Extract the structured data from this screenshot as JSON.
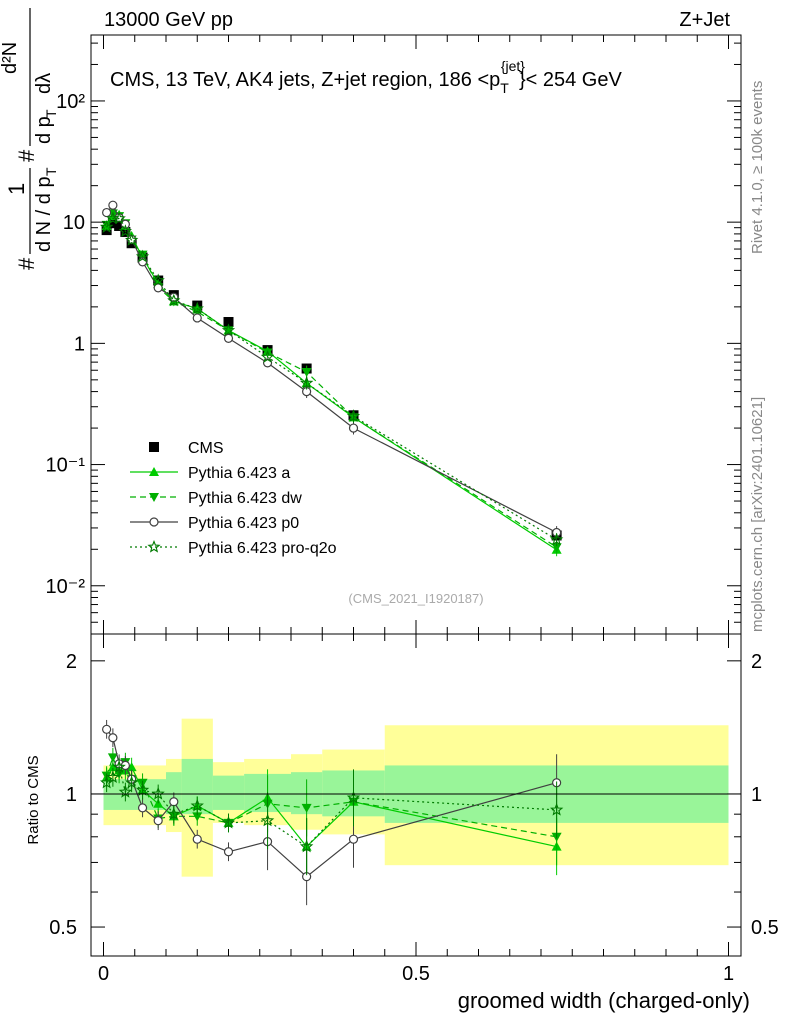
{
  "header": {
    "left": "13000 GeV pp",
    "right": "Z+Jet"
  },
  "side_labels": {
    "rivet": "Rivet 4.1.0, ≥ 100k events",
    "mcplots": "mcplots.cern.ch [arXiv:2401.10621]"
  },
  "colors": {
    "cms": "#000000",
    "a": "#00cc00",
    "dw": "#00b000",
    "p0": "#404040",
    "pro_q2o": "#007a00",
    "band_inner": "#99f599",
    "band_outer": "#ffff99"
  },
  "chart_data": [
    {
      "type": "scatter",
      "panel": "main",
      "title": "CMS, 13 TeV, AK4 jets, Z+jet region, 186 <p_T^{jet}< 254 GeV",
      "title_parts": {
        "main": "CMS, 13 TeV, AK4 jets, Z+jet region, 186 <p",
        "sub": "T",
        "sup": "{jet}",
        "rest": "}< 254 GeV"
      },
      "ylabel": "1/(dN/dp_T) d²N/(dp_T dλ)",
      "ylabel_parts": {
        "numer": "d²N",
        "denom_left": "d N / d p",
        "denom_mid": "d p",
        "denom_right": "dλ",
        "sub": "T",
        "hash": "#",
        "one": "1"
      },
      "yscale": "log",
      "ylim": [
        0.004,
        350
      ],
      "xlim": [
        -0.02,
        1.02
      ],
      "yticks": [
        "10⁻²",
        "10⁻¹",
        "1",
        "10",
        "10²"
      ],
      "ytick_values": [
        0.01,
        0.1,
        1,
        10,
        100
      ],
      "legend_position": "middle-left",
      "watermark": "(CMS_2021_I1920187)",
      "x": [
        0.005,
        0.015,
        0.025,
        0.035,
        0.045,
        0.0625,
        0.0875,
        0.1125,
        0.15,
        0.2,
        0.2625,
        0.325,
        0.4,
        0.725
      ],
      "series": [
        {
          "name": "CMS",
          "marker": "square",
          "line": "none",
          "values": [
            8.6,
            9.8,
            9.3,
            8.3,
            6.7,
            5.1,
            3.3,
            2.5,
            2.05,
            1.5,
            0.88,
            0.62,
            0.255,
            0.026
          ]
        },
        {
          "name": "Pythia 6.423 a",
          "marker": "triangle-up",
          "line": "solid",
          "values": [
            9.3,
            11.2,
            11.5,
            9.3,
            7.7,
            5.1,
            3.1,
            2.22,
            1.93,
            1.28,
            0.86,
            0.47,
            0.245,
            0.0198
          ]
        },
        {
          "name": "Pythia 6.423 dw",
          "marker": "triangle-down",
          "line": "dashed",
          "values": [
            9.5,
            11.8,
            11.2,
            9.8,
            7.2,
            5.4,
            2.9,
            2.22,
            1.82,
            1.28,
            0.84,
            0.58,
            0.245,
            0.0208
          ]
        },
        {
          "name": "Pythia 6.423 p0",
          "marker": "open-circle",
          "line": "solid",
          "values": [
            12.0,
            13.8,
            10.9,
            9.6,
            7.2,
            4.7,
            2.87,
            2.4,
            1.62,
            1.1,
            0.69,
            0.4,
            0.2,
            0.0275
          ]
        },
        {
          "name": "Pythia 6.423 pro-q2o",
          "marker": "star",
          "line": "dotted",
          "values": [
            9.1,
            10.7,
            10.7,
            8.4,
            7.1,
            5.2,
            3.3,
            2.25,
            1.93,
            1.28,
            0.77,
            0.47,
            0.25,
            0.024
          ]
        }
      ],
      "legend": [
        "CMS",
        "Pythia 6.423 a",
        "Pythia 6.423 dw",
        "Pythia 6.423 p0",
        "Pythia 6.423 pro-q2o"
      ]
    },
    {
      "type": "scatter",
      "panel": "ratio",
      "ylabel": "Ratio to CMS",
      "xlabel": "groomed width (charged-only)",
      "yscale": "log",
      "ylim": [
        0.43,
        2.3
      ],
      "xlim": [
        -0.02,
        1.02
      ],
      "yticks": [
        "0.5",
        "1",
        "2"
      ],
      "ytick_values": [
        0.5,
        1,
        2
      ],
      "xticks": [
        "0",
        "0.5",
        "1"
      ],
      "xtick_values": [
        0,
        0.5,
        1
      ],
      "bands": [
        {
          "x0": 0.0,
          "x1": 0.1,
          "inner": [
            0.92,
            1.08
          ],
          "outer": [
            0.85,
            1.16
          ]
        },
        {
          "x0": 0.1,
          "x1": 0.125,
          "inner": [
            0.9,
            1.12
          ],
          "outer": [
            0.82,
            1.2
          ]
        },
        {
          "x0": 0.125,
          "x1": 0.175,
          "inner": [
            0.9,
            1.2
          ],
          "outer": [
            0.65,
            1.48
          ]
        },
        {
          "x0": 0.175,
          "x1": 0.225,
          "inner": [
            0.92,
            1.1
          ],
          "outer": [
            0.86,
            1.18
          ]
        },
        {
          "x0": 0.225,
          "x1": 0.3,
          "inner": [
            0.91,
            1.11
          ],
          "outer": [
            0.85,
            1.2
          ]
        },
        {
          "x0": 0.3,
          "x1": 0.35,
          "inner": [
            0.9,
            1.12
          ],
          "outer": [
            0.83,
            1.23
          ]
        },
        {
          "x0": 0.35,
          "x1": 0.45,
          "inner": [
            0.89,
            1.13
          ],
          "outer": [
            0.81,
            1.26
          ]
        },
        {
          "x0": 0.45,
          "x1": 1.0,
          "inner": [
            0.86,
            1.16
          ],
          "outer": [
            0.69,
            1.43
          ]
        }
      ],
      "series": [
        {
          "name": "Pythia 6.423 a",
          "values": [
            1.09,
            1.15,
            1.13,
            1.13,
            1.15,
            1.02,
            0.95,
            0.89,
            0.94,
            0.86,
            0.98,
            0.76,
            0.96,
            0.76
          ]
        },
        {
          "name": "Pythia 6.423 dw",
          "values": [
            1.1,
            1.21,
            1.11,
            1.18,
            1.08,
            1.06,
            0.88,
            0.89,
            0.89,
            0.86,
            0.95,
            0.93,
            0.96,
            0.8
          ]
        },
        {
          "name": "Pythia 6.423 p0",
          "values": [
            1.4,
            1.34,
            1.17,
            1.16,
            1.08,
            0.93,
            0.87,
            0.96,
            0.79,
            0.74,
            0.78,
            0.65,
            0.79,
            1.06
          ]
        },
        {
          "name": "Pythia 6.423 pro-q2o",
          "values": [
            1.06,
            1.09,
            1.15,
            1.01,
            1.06,
            1.02,
            1.0,
            0.9,
            0.94,
            0.86,
            0.87,
            0.76,
            0.98,
            0.92
          ]
        }
      ]
    }
  ]
}
